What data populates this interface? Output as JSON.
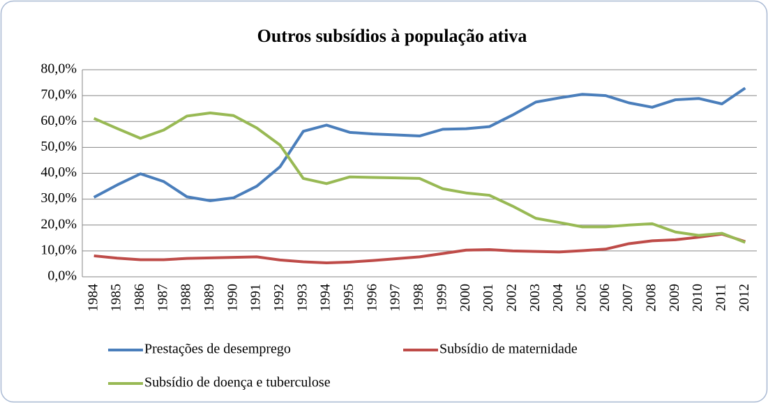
{
  "chart_data": {
    "type": "line",
    "title": "Outros subsídios à população ativa",
    "categories": [
      "1984",
      "1985",
      "1986",
      "1987",
      "1988",
      "1989",
      "1990",
      "1991",
      "1992",
      "1993",
      "1994",
      "1995",
      "1996",
      "1997",
      "1998",
      "1999",
      "2000",
      "2001",
      "2002",
      "2003",
      "2004",
      "2005",
      "2006",
      "2007",
      "2008",
      "2009",
      "2010",
      "2011",
      "2012"
    ],
    "series": [
      {
        "name": "Prestações de desemprego",
        "color": "#4a7ebb",
        "values": [
          30.7,
          35.5,
          39.8,
          36.8,
          30.9,
          29.4,
          30.5,
          35.0,
          42.5,
          56.2,
          58.6,
          55.8,
          55.2,
          54.8,
          54.4,
          57.0,
          57.2,
          58.0,
          62.5,
          67.5,
          69.1,
          70.5,
          70.0,
          67.2,
          65.5,
          68.4,
          68.9,
          66.8,
          72.9
        ]
      },
      {
        "name": "Subsídio de maternidade",
        "color": "#be4b48",
        "values": [
          8.1,
          7.2,
          6.6,
          6.6,
          7.1,
          7.3,
          7.5,
          7.7,
          6.5,
          5.8,
          5.4,
          5.7,
          6.3,
          7.0,
          7.7,
          9.0,
          10.3,
          10.5,
          10.0,
          9.8,
          9.6,
          10.1,
          10.7,
          12.8,
          13.9,
          14.3,
          15.3,
          16.5,
          13.6
        ]
      },
      {
        "name": "Subsídio de doença e tuberculose",
        "color": "#98b954",
        "values": [
          61.2,
          57.3,
          53.5,
          56.7,
          62.1,
          63.3,
          62.3,
          57.5,
          50.9,
          38.0,
          36.0,
          38.6,
          38.4,
          38.2,
          38.0,
          34.0,
          32.4,
          31.5,
          27.3,
          22.6,
          21.0,
          19.3,
          19.3,
          20.0,
          20.5,
          17.3,
          16.0,
          16.8,
          13.3
        ]
      }
    ],
    "ylim": [
      0,
      80
    ],
    "yticks": [
      {
        "value": 0,
        "label": "0,0%"
      },
      {
        "value": 10,
        "label": "10,0%"
      },
      {
        "value": 20,
        "label": "20,0%"
      },
      {
        "value": 30,
        "label": "30,0%"
      },
      {
        "value": 40,
        "label": "40,0%"
      },
      {
        "value": 50,
        "label": "50,0%"
      },
      {
        "value": 60,
        "label": "60,0%"
      },
      {
        "value": 70,
        "label": "70,0%"
      },
      {
        "value": 80,
        "label": "80,0%"
      }
    ],
    "grid": true,
    "legend": "bottom"
  }
}
